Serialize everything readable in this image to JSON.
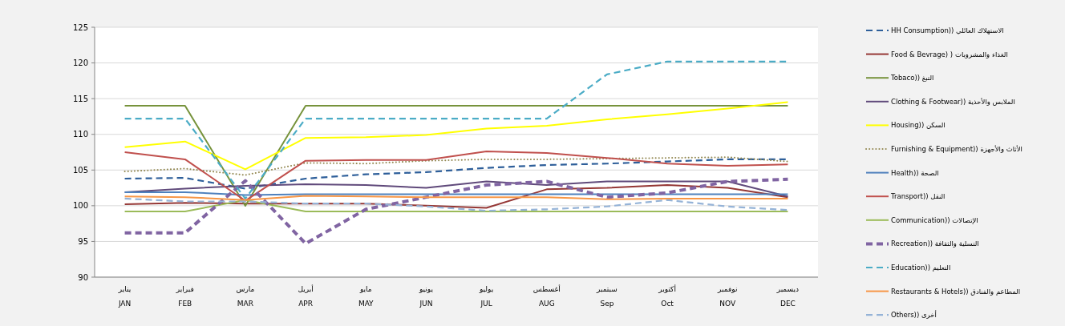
{
  "chart_data": {
    "type": "line",
    "categories": [
      "يناير\nJAN",
      "فبراير\nFEB",
      "مارس\nMAR",
      "أبريل\nAPR",
      "مايو\nMAY",
      "يونيو\nJUN",
      "يوليو\nJUL",
      "أغسطس\nAUG",
      "سبتمبر\nSep",
      "أكتوبر\nOct",
      "نوفمبر\nNOV",
      "ديسمبر\nDEC"
    ],
    "ylim": [
      90,
      125
    ],
    "yticks": [
      90,
      95,
      100,
      105,
      110,
      115,
      120,
      125
    ],
    "grid": "y",
    "legend": "right",
    "series": [
      {
        "name": "الاستهلاك العائلي ((HH Consumption",
        "color": "#2e5f9a",
        "line_style": "dashed",
        "values": [
          103.8,
          103.9,
          102.4,
          103.8,
          104.4,
          104.7,
          105.3,
          105.7,
          105.9,
          106.2,
          106.5,
          106.5
        ]
      },
      {
        "name": "الغذاء والمشروبات ( (Food & Bevrage",
        "color": "#953735",
        "line_style": "solid",
        "values": [
          100.2,
          100.4,
          100.3,
          100.3,
          100.3,
          100.0,
          99.7,
          102.3,
          102.5,
          102.9,
          102.5,
          101.2
        ]
      },
      {
        "name": "التبغ ((Tobaco",
        "color": "#77933c",
        "line_style": "solid",
        "values": [
          114,
          114,
          100,
          114,
          114,
          114,
          114,
          114,
          114,
          114,
          114,
          114
        ]
      },
      {
        "name": "الملابس والأحذية ((Clothing & Footwear",
        "color": "#604a7b",
        "line_style": "solid",
        "values": [
          101.9,
          102.4,
          102.8,
          103.0,
          102.9,
          102.5,
          103.4,
          102.9,
          103.4,
          103.4,
          103.4,
          101.3
        ]
      },
      {
        "name": "السكن ((Housing",
        "color": "#ffff00",
        "line_style": "solid",
        "values": [
          108.2,
          109.0,
          105.1,
          109.5,
          109.6,
          109.9,
          110.8,
          111.2,
          112.1,
          112.8,
          113.6,
          114.5
        ]
      },
      {
        "name": "الأثاث والأجهزة ((Furnishing & Equipment",
        "color": "#948a54",
        "line_style": "dotted",
        "values": [
          104.8,
          105.2,
          104.3,
          106.0,
          105.9,
          106.3,
          106.5,
          106.5,
          106.6,
          106.7,
          106.8,
          106.2
        ]
      },
      {
        "name": "الصحة ((Health",
        "color": "#4f81bd",
        "line_style": "solid",
        "values": [
          101.9,
          101.9,
          101.5,
          101.6,
          101.6,
          101.6,
          101.6,
          101.6,
          101.6,
          101.6,
          101.6,
          101.6
        ]
      },
      {
        "name": "النقل ((Transport",
        "color": "#c0504d",
        "line_style": "solid",
        "values": [
          107.5,
          106.5,
          100.7,
          106.3,
          106.4,
          106.4,
          107.6,
          107.4,
          106.7,
          105.9,
          105.6,
          105.8
        ]
      },
      {
        "name": "الإتصالات ((Communication",
        "color": "#9bbb59",
        "line_style": "solid",
        "values": [
          99.2,
          99.2,
          100.8,
          99.2,
          99.2,
          99.2,
          99.2,
          99.2,
          99.2,
          99.2,
          99.2,
          99.2
        ]
      },
      {
        "name": "التسلية والثقافة ((Recreation",
        "color": "#8064a2",
        "line_style": "dashed",
        "values": [
          96.2,
          96.2,
          103.5,
          94.7,
          99.5,
          101.2,
          102.9,
          103.4,
          101.2,
          101.8,
          103.4,
          103.7
        ]
      },
      {
        "name": "التعليم ((Education",
        "color": "#4bacc6",
        "line_style": "dashed",
        "values": [
          112.2,
          112.2,
          101.0,
          112.2,
          112.2,
          112.2,
          112.2,
          112.2,
          118.4,
          120.2,
          120.2,
          120.2
        ]
      },
      {
        "name": "المطاعم والفنادق ((Restaurants & Hotels",
        "color": "#f79646",
        "line_style": "solid",
        "values": [
          101.3,
          101.2,
          100.8,
          101.4,
          101.3,
          101.2,
          101.2,
          101.2,
          100.9,
          101.0,
          101.0,
          101.0
        ]
      },
      {
        "name": "أخرى ((Others",
        "color": "#95b3d7",
        "line_style": "dashed",
        "values": [
          101.0,
          100.6,
          100.6,
          100.3,
          100.3,
          99.9,
          99.3,
          99.5,
          99.9,
          100.8,
          99.9,
          99.4
        ]
      }
    ]
  }
}
